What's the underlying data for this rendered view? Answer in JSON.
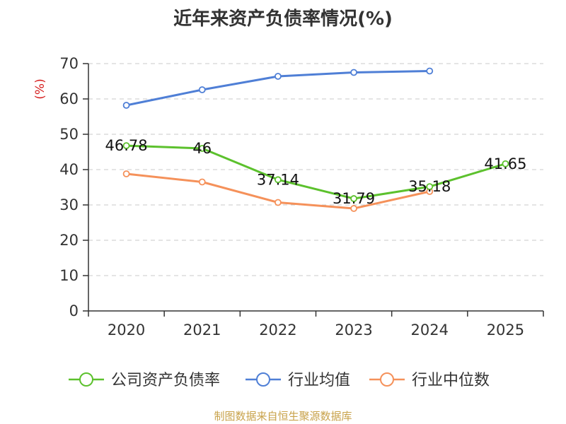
{
  "chart_data": {
    "type": "line",
    "title": "近年来资产负债率情况(%)",
    "ylabel": "(%)",
    "xlabel": "",
    "ylim": [
      0,
      70
    ],
    "yticks": [
      0,
      10,
      20,
      30,
      40,
      50,
      60,
      70
    ],
    "grid": true,
    "legend_position": "bottom",
    "categories": [
      "2020",
      "2021",
      "2022",
      "2023",
      "2024",
      "2025"
    ],
    "series": [
      {
        "name": "公司资产负债率",
        "color": "#5cc12d",
        "values": [
          46.78,
          46,
          37.14,
          31.79,
          35.18,
          41.65
        ],
        "labels": [
          "46.78",
          "46",
          "37.14",
          "31.79",
          "35.18",
          "41.65"
        ]
      },
      {
        "name": "行业均值",
        "color": "#4f7fd6",
        "values": [
          58.2,
          62.6,
          66.4,
          67.5,
          67.9,
          null
        ]
      },
      {
        "name": "行业中位数",
        "color": "#f5915a",
        "values": [
          38.8,
          36.5,
          30.7,
          29.0,
          33.8,
          null
        ]
      }
    ]
  },
  "footer": {
    "source": "制图数据来自恒生聚源数据库"
  }
}
